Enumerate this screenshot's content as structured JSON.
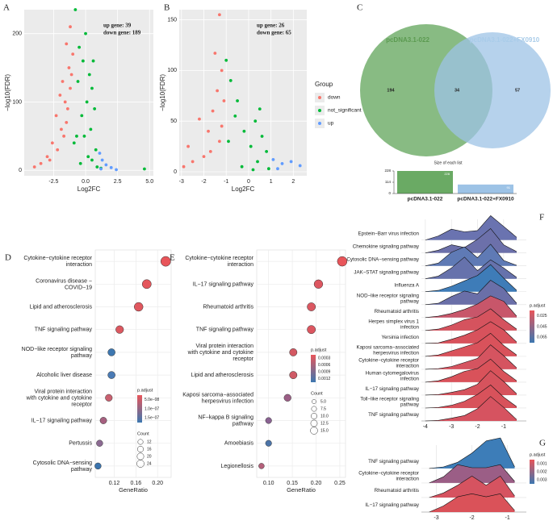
{
  "chart_data": [
    {
      "type": "scatter",
      "panel": "A",
      "xlabel": "Log2FC",
      "ylabel": "−log10(FDR)",
      "annotations": [
        "up gene: 39",
        "down gene: 189"
      ],
      "xlim": [
        -4.8,
        5.3
      ],
      "ylim": [
        -8,
        235
      ],
      "xticks": [
        -2.5,
        {
          "value": 0,
          "label": "0.0"
        },
        2.5,
        {
          "value": 5,
          "label": "5.0"
        }
      ],
      "yticks": [
        0,
        100,
        200
      ],
      "grid": true,
      "series": [
        {
          "color": "#f8766d",
          "x": [
            -1.2,
            -1.5,
            -1.0,
            -1.3,
            -1.8,
            -2.0,
            -1.6,
            -2.3,
            -1.9,
            -2.6,
            -3.0,
            -3.5,
            -1.4,
            -1.1,
            -2.2,
            -4.0,
            -1.7,
            -1.2,
            -2.8,
            -1.5
          ],
          "values": [
            210,
            185,
            170,
            150,
            130,
            110,
            100,
            80,
            60,
            40,
            20,
            10,
            90,
            140,
            30,
            5,
            50,
            120,
            15,
            70
          ]
        },
        {
          "color": "#00ba38",
          "x": [
            -0.8,
            -0.5,
            -0.2,
            0.3,
            0.6,
            0.5,
            -0.6,
            0.1,
            -0.3,
            0.4,
            -0.7,
            0.8,
            0.2,
            -0.4,
            0.9,
            1.2,
            -0.9,
            0.0,
            0.7,
            4.6,
            -0.1,
            0.5
          ],
          "values": [
            235,
            180,
            160,
            140,
            160,
            120,
            130,
            100,
            80,
            60,
            50,
            30,
            20,
            10,
            5,
            3,
            40,
            200,
            90,
            2,
            50,
            15
          ]
        },
        {
          "color": "#619cff",
          "x": [
            1.1,
            1.3,
            1.6,
            2.0,
            1.2,
            2.4
          ],
          "values": [
            25,
            15,
            8,
            4,
            2,
            1
          ]
        }
      ]
    },
    {
      "type": "scatter",
      "panel": "B",
      "xlabel": "Log2FC",
      "ylabel": "−log10(FDR)",
      "annotations": [
        "up gene: 26",
        "down gene: 65"
      ],
      "xlim": [
        -3.1,
        2.6
      ],
      "ylim": [
        -4,
        160
      ],
      "xticks": [
        -3,
        -2,
        -1,
        0,
        1,
        2
      ],
      "yticks": [
        0,
        50,
        100,
        150
      ],
      "grid": true,
      "legend_title": "Group",
      "series": [
        {
          "name": "down",
          "color": "#f8766d",
          "x": [
            -1.3,
            -1.5,
            -1.2,
            -2.2,
            -1.6,
            -1.4,
            -1.8,
            -2.7,
            -1.1,
            -1.3,
            -2.0,
            -2.5,
            -1.2,
            -1.7,
            -2.9
          ],
          "values": [
            155,
            117,
            100,
            52,
            60,
            80,
            40,
            25,
            70,
            30,
            15,
            10,
            45,
            20,
            5
          ]
        },
        {
          "name": "not_significant",
          "color": "#00ba38",
          "x": [
            -1.0,
            -0.8,
            -0.5,
            0.5,
            0.3,
            -0.2,
            0.6,
            0.1,
            -0.6,
            0.8,
            0.4,
            -0.3,
            0.9,
            -0.9,
            0.2
          ],
          "values": [
            110,
            90,
            70,
            62,
            50,
            40,
            35,
            25,
            55,
            20,
            10,
            5,
            3,
            30,
            2
          ]
        },
        {
          "name": "up",
          "color": "#619cff",
          "x": [
            1.1,
            1.5,
            1.9,
            2.3,
            1.3
          ],
          "values": [
            12,
            8,
            10,
            6,
            3
          ]
        }
      ]
    },
    {
      "type": "venn",
      "panel": "C",
      "sets": [
        {
          "name": "pcDNA3.1-022",
          "color": "#6aaa64"
        },
        {
          "name": "pcDNA3.1-022+FX0910",
          "color": "#9dc3e6"
        }
      ],
      "values": [
        194,
        34,
        57
      ]
    },
    {
      "type": "bar",
      "title": "Size of each list",
      "categories": [
        "pcDNA3.1-022",
        "pcDNA3.1-022+FX0910"
      ],
      "values": [
        228,
        91
      ],
      "colors": [
        "#6aaa64",
        "#9dc3e6"
      ],
      "ylim": [
        0,
        228
      ],
      "yticks": [
        0,
        114,
        228
      ]
    },
    {
      "type": "dot",
      "panel": "D",
      "xlabel": "GeneRatio",
      "categories": [
        "Cytokine−cytokine receptor interaction",
        "Coronavirus disease − COVID−19",
        "Lipid and atherosclerosis",
        "TNF signaling pathway",
        "NOD−like receptor signaling pathway",
        "Alcoholic liver disease",
        "Viral protein interaction with cytokine and cytokine receptor",
        "IL−17 signaling pathway",
        "Pertussis",
        "Cytosolic DNA−sensing pathway"
      ],
      "values": [
        0.215,
        0.18,
        0.165,
        0.13,
        0.115,
        0.115,
        0.11,
        0.1,
        0.093,
        0.09
      ],
      "counts": [
        24,
        20,
        19,
        15,
        13,
        13,
        12,
        11,
        10,
        10
      ],
      "colors": [
        "#e8555a",
        "#e4565c",
        "#e0575e",
        "#dc5860",
        "#3d77b0",
        "#4a7bb5",
        "#c96070",
        "#a66080",
        "#8c6a92",
        "#3b74ae"
      ],
      "xlim": [
        0.085,
        0.225
      ],
      "xticks": [
        0.12,
        0.16,
        {
          "value": 0.2,
          "label": "0.20"
        }
      ],
      "color_title": "p.adjust",
      "color_ticks": [
        "5.0e−08",
        "1.0e−07",
        "1.5e−07"
      ],
      "color_scale": [
        "#e8555a",
        "#3d77b0"
      ],
      "size_title": "Count",
      "size_ticks": [
        12,
        16,
        20,
        24
      ]
    },
    {
      "type": "dot",
      "panel": "E",
      "xlabel": "GeneRatio",
      "categories": [
        "Cytokine−cytokine receptor interaction",
        "IL−17 signaling pathway",
        "Rheumatoid arthritis",
        "TNF signaling pathway",
        "Viral protein interaction with cytokine and cytokine receptor",
        "Lipid and atherosclerosis",
        "Kaposi sarcoma−associated herpesvirus infection",
        "NF−kappa B signaling pathway",
        "Amoebiasis",
        "Legionellosis"
      ],
      "values": [
        0.255,
        0.205,
        0.19,
        0.19,
        0.152,
        0.152,
        0.14,
        0.1,
        0.1,
        0.085
      ],
      "counts": [
        15,
        12,
        11,
        11,
        9,
        9,
        8,
        6,
        6,
        5
      ],
      "colors": [
        "#e8555a",
        "#dd5660",
        "#db5761",
        "#dc5660",
        "#d35862",
        "#cf5a66",
        "#9b5e86",
        "#8a6292",
        "#4c74a8",
        "#b4607a"
      ],
      "xlim": [
        0.075,
        0.262
      ],
      "xticks": [
        {
          "value": 0.1,
          "label": "0.10"
        },
        0.15,
        {
          "value": 0.2,
          "label": "0.20"
        },
        0.25
      ],
      "color_title": "p.adjust",
      "color_ticks": [
        "0.0003",
        "0.0006",
        "0.0009",
        "0.0012"
      ],
      "color_scale": [
        "#e8555a",
        "#3d77b0"
      ],
      "size_title": "Count",
      "size_ticks": [
        {
          "value": 5,
          "label": "5.0"
        },
        7.5,
        {
          "value": 10,
          "label": "10.0"
        },
        12.5,
        {
          "value": 15,
          "label": "15.0"
        }
      ]
    },
    {
      "type": "ridge",
      "panel": "F",
      "x": [
        -4,
        -3.5,
        -3,
        -2.5,
        -2,
        -1.5,
        -1,
        -0.5
      ],
      "xlim": [
        -4.15,
        -0.13
      ],
      "xticks": [
        -4,
        -3,
        -2,
        -1
      ],
      "color_title": "p.adjust",
      "color_ticks": [
        "0.025",
        "0.045",
        "0.065"
      ],
      "color_scale": [
        "#e8555a",
        "#3d77b0"
      ],
      "series": [
        {
          "name": "Epstein−Barr virus infection",
          "color": "#6a73b0",
          "values": [
            0,
            0.15,
            0.4,
            0.3,
            0.35,
            0.9,
            0.5,
            0.1
          ]
        },
        {
          "name": "Chemokine signaling pathway",
          "color": "#6c70aa",
          "values": [
            0,
            0.1,
            0.3,
            0.2,
            0.5,
            0.9,
            0.3,
            0.05
          ]
        },
        {
          "name": "Cytosolic DNA−sensing pathway",
          "color": "#5f7ab5",
          "values": [
            0,
            0.1,
            0.5,
            0.7,
            0.3,
            0.8,
            0.2,
            0.02
          ]
        },
        {
          "name": "JAK−STAT signaling pathway",
          "color": "#6672ac",
          "values": [
            0,
            0.1,
            0.4,
            0.8,
            0.3,
            0.7,
            0.4,
            0.05
          ]
        },
        {
          "name": "Influenza A",
          "color": "#3e7cb8",
          "values": [
            0,
            0.05,
            0.2,
            0.4,
            0.6,
            1.0,
            0.5,
            0.05
          ]
        },
        {
          "name": "NOD−like receptor signaling pathway",
          "color": "#6a6fa8",
          "values": [
            0,
            0.05,
            0.3,
            0.5,
            0.4,
            0.9,
            0.6,
            0.05
          ]
        },
        {
          "name": "Rheumatoid arthritis",
          "color": "#c8566a",
          "values": [
            0,
            0.05,
            0.15,
            0.3,
            0.5,
            0.8,
            0.6,
            0.05
          ]
        },
        {
          "name": "Herpes simplex virus 1 infection",
          "color": "#d5535e",
          "values": [
            0,
            0.05,
            0.2,
            0.4,
            0.5,
            0.8,
            0.4,
            0.05
          ]
        },
        {
          "name": "Yersinia infection",
          "color": "#d8525c",
          "values": [
            0,
            0.02,
            0.15,
            0.3,
            0.5,
            0.8,
            0.5,
            0.05
          ]
        },
        {
          "name": "Kaposi sarcoma−associated herpesvirus infection",
          "color": "#d9525b",
          "values": [
            0,
            0.05,
            0.2,
            0.35,
            0.5,
            0.85,
            0.4,
            0.05
          ]
        },
        {
          "name": "Cytokine−cytokine receptor interaction",
          "color": "#d55460",
          "values": [
            0,
            0.02,
            0.1,
            0.25,
            0.4,
            0.9,
            0.5,
            0.05
          ]
        },
        {
          "name": "Human cytomegalovirus infection",
          "color": "#d9525a",
          "values": [
            0,
            0.05,
            0.2,
            0.4,
            0.5,
            0.85,
            0.4,
            0.05
          ]
        },
        {
          "name": "IL−17 signaling pathway",
          "color": "#d6535d",
          "values": [
            0,
            0.02,
            0.1,
            0.2,
            0.4,
            0.9,
            0.5,
            0.05
          ]
        },
        {
          "name": "Toll−like receptor signaling pathway",
          "color": "#d8525b",
          "values": [
            0,
            0.02,
            0.1,
            0.25,
            0.5,
            0.85,
            0.4,
            0.05
          ]
        },
        {
          "name": "TNF signaling pathway",
          "color": "#d65360",
          "values": [
            0,
            0.02,
            0.1,
            0.2,
            0.45,
            0.9,
            0.5,
            0.05
          ]
        }
      ]
    },
    {
      "type": "ridge",
      "panel": "G",
      "x": [
        -3.2,
        -2.8,
        -2.4,
        -2,
        -1.6,
        -1.2,
        -0.8
      ],
      "xlim": [
        -3.42,
        -0.47
      ],
      "xticks": [
        -3,
        -2,
        -1
      ],
      "color_title": "p.adjust",
      "color_ticks": [
        "0.001",
        "0.002",
        "0.003"
      ],
      "color_scale": [
        "#e8555a",
        "#3d77b0"
      ],
      "series": [
        {
          "name": "TNF signaling pathway",
          "color": "#3d7db8",
          "values": [
            0,
            0.05,
            0.2,
            0.5,
            0.9,
            1.0,
            0.05
          ]
        },
        {
          "name": "Cytokine−cytokine receptor interaction",
          "color": "#9b5e86",
          "values": [
            0,
            0.2,
            0.6,
            0.5,
            0.5,
            0.6,
            0.05
          ]
        },
        {
          "name": "Rheumatoid arthritis",
          "color": "#d65360",
          "values": [
            0,
            0.15,
            0.4,
            0.7,
            0.4,
            0.7,
            0.05
          ]
        },
        {
          "name": "IL−17 signaling pathway",
          "color": "#da5259",
          "values": [
            0,
            0.2,
            0.5,
            0.6,
            0.5,
            0.6,
            0.05
          ]
        }
      ]
    }
  ]
}
